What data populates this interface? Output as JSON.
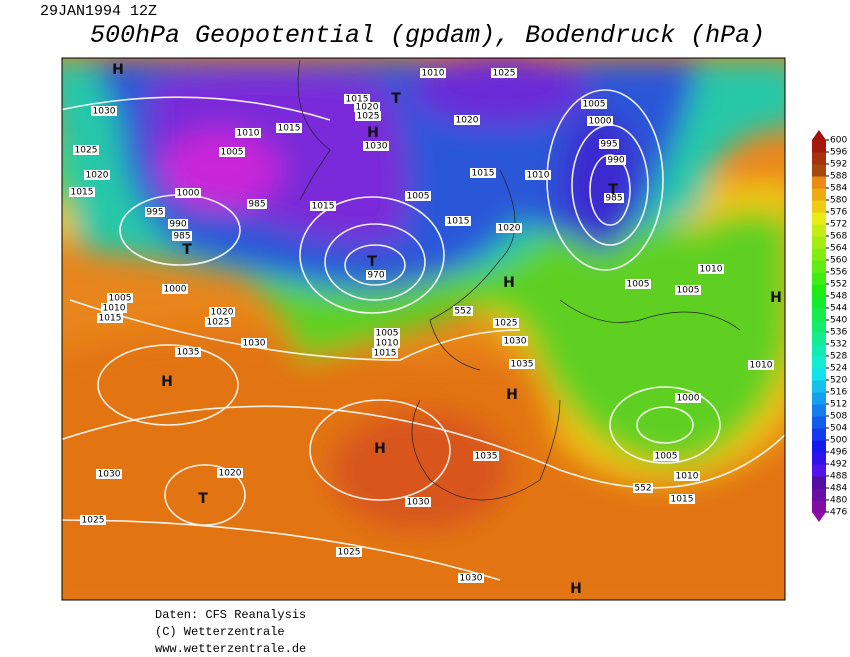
{
  "header": {
    "date": "29JAN1994 12Z",
    "title": "500hPa Geopotential (gpdam), Bodendruck (hPa)"
  },
  "colorbar": {
    "ticks": [
      476,
      480,
      484,
      488,
      492,
      496,
      500,
      504,
      508,
      512,
      516,
      520,
      524,
      528,
      532,
      536,
      540,
      544,
      548,
      552,
      556,
      560,
      564,
      568,
      572,
      576,
      580,
      584,
      588,
      592,
      596,
      600
    ]
  },
  "isobar_labels": [
    "1030",
    "1025",
    "1020",
    "1015",
    "1010",
    "1005",
    "1015",
    "1000",
    "995",
    "990",
    "985",
    "985",
    "1015",
    "1015",
    "1020",
    "1025",
    "1030",
    "1010",
    "1025",
    "1020",
    "1005",
    "1015",
    "1010",
    "1015",
    "1020",
    "1005",
    "1000",
    "995",
    "990",
    "985",
    "1010",
    "1005",
    "1005",
    "1010",
    "1000",
    "1005",
    "1010",
    "1015",
    "1005",
    "1010",
    "1015",
    "1000",
    "1020",
    "1025",
    "1030",
    "1035",
    "1005",
    "1010",
    "1015",
    "1025",
    "1030",
    "1035",
    "1035",
    "1030",
    "1030",
    "1020",
    "1025",
    "1025",
    "1030",
    "970",
    "552",
    "552"
  ],
  "centers": [
    "H",
    "T",
    "H",
    "T",
    "T",
    "T",
    "H",
    "H",
    "H",
    "T",
    "H",
    "H",
    "H"
  ],
  "footer": [
    "Daten: CFS Reanalysis",
    "(C) Wetterzentrale",
    "www.wetterzentrale.de"
  ]
}
